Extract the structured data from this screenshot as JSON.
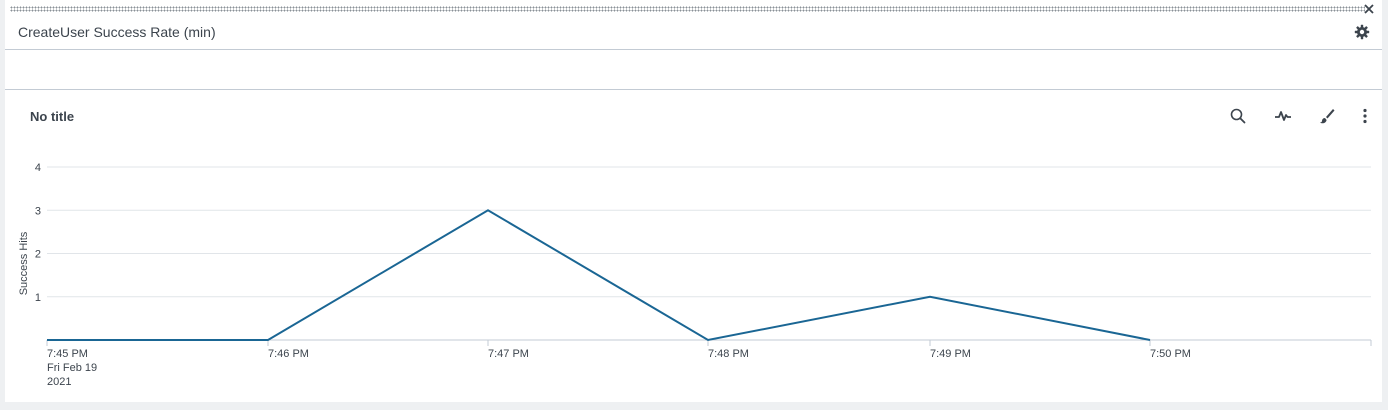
{
  "panel": {
    "title": "CreateUser Success Rate (min)",
    "close_icon": "close-icon",
    "settings_icon": "gear-icon"
  },
  "viz": {
    "title": "No title",
    "toolbar": [
      {
        "name": "search-icon"
      },
      {
        "name": "pulse-icon"
      },
      {
        "name": "brush-icon"
      },
      {
        "name": "more-vertical-icon"
      }
    ]
  },
  "colors": {
    "line": "#1a6694",
    "grid": "#e1e5e9",
    "axis": "#c3cbd4"
  },
  "chart_data": {
    "type": "line",
    "ylabel": "Success Hits",
    "ylim": [
      0,
      4
    ],
    "yticks": [
      "1",
      "2",
      "3",
      "4"
    ],
    "xticks": [
      {
        "label": "7:45 PM",
        "sub": [
          "Fri Feb 19",
          "2021"
        ]
      },
      {
        "label": "7:46 PM"
      },
      {
        "label": "7:47 PM"
      },
      {
        "label": "7:48 PM"
      },
      {
        "label": "7:49 PM"
      },
      {
        "label": "7:50 PM"
      }
    ],
    "series": [
      {
        "values": [
          0,
          0,
          3,
          0,
          1,
          0
        ]
      }
    ]
  }
}
